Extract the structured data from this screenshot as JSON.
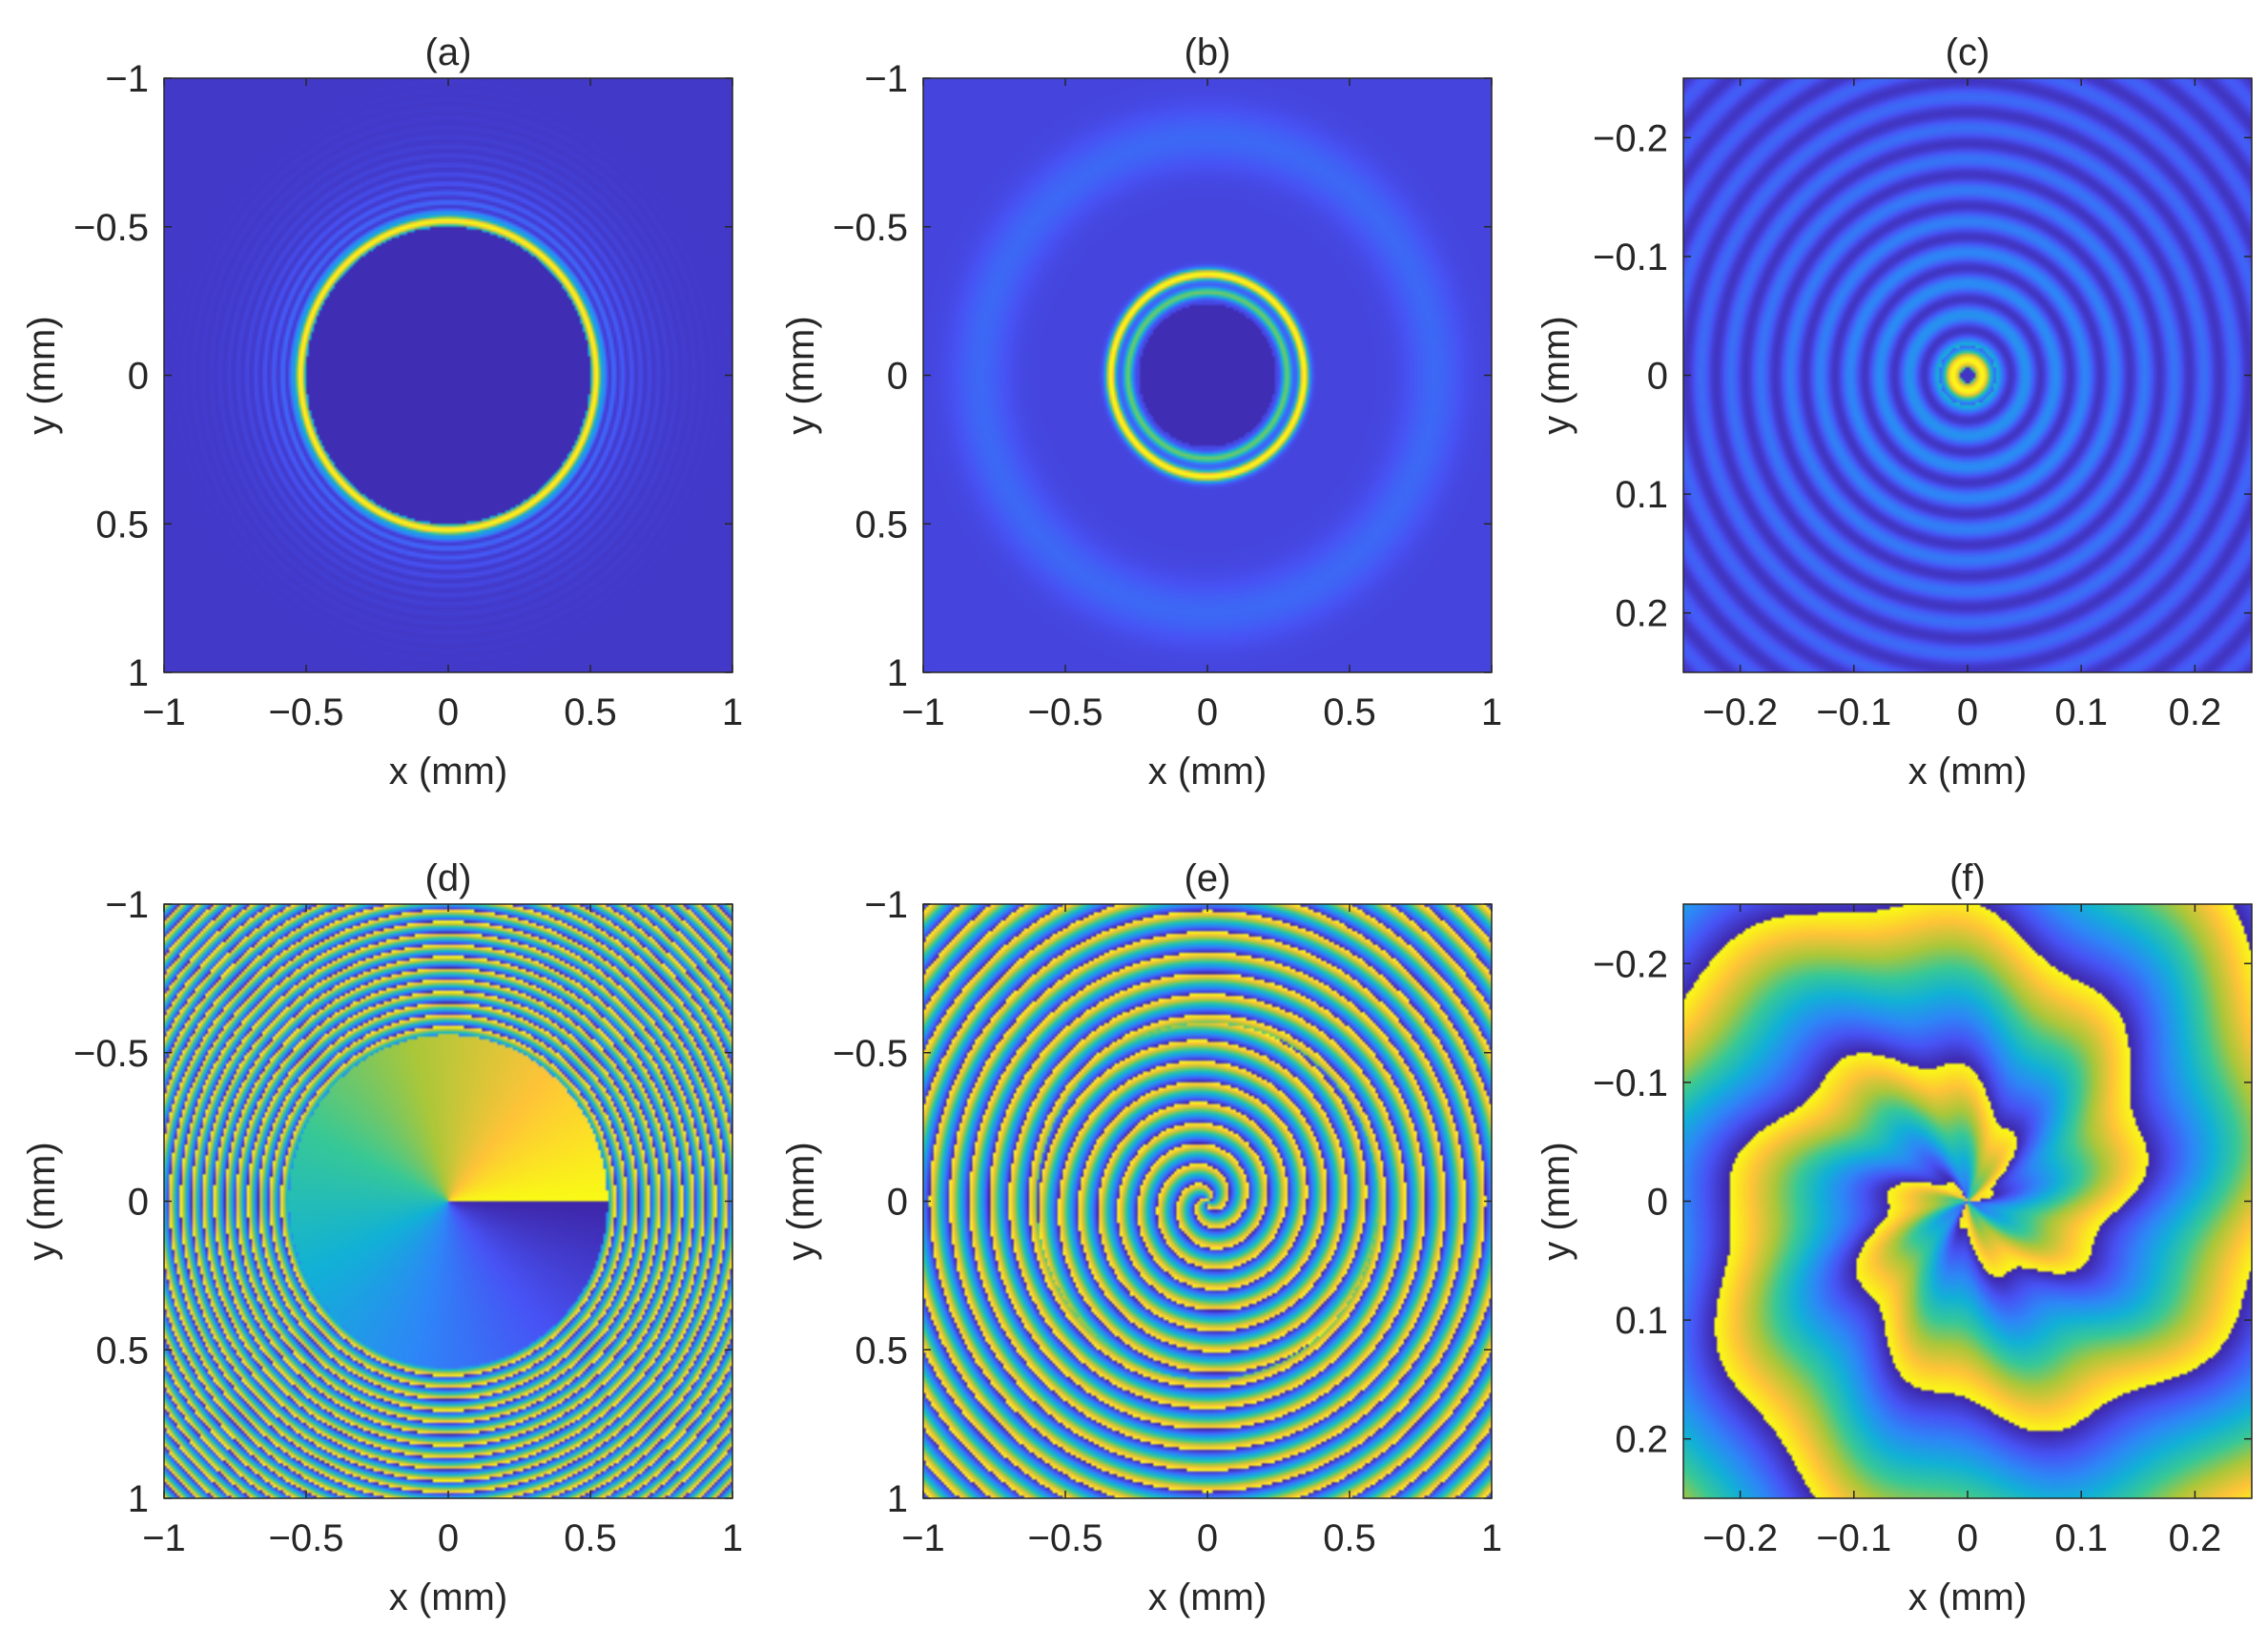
{
  "chart_data": [
    {
      "type": "heatmap",
      "title": "(a)",
      "quantity": "intensity",
      "xlabel": "x (mm)",
      "ylabel": "y (mm)",
      "xlim": [
        -1,
        1
      ],
      "ylim": [
        -1,
        1
      ],
      "y_reversed": true,
      "xticks": [
        -1,
        -0.5,
        0,
        0.5,
        1
      ],
      "yticks": [
        -1,
        -0.5,
        0,
        0.5,
        1
      ],
      "xtick_labels": [
        "−1",
        "−0.5",
        "0",
        "0.5",
        "1"
      ],
      "ytick_labels": [
        "−1",
        "−0.5",
        "0",
        "0.5",
        "1"
      ],
      "pattern": "bright thin ring of radius ~0.52 mm with faint outer fringes, dark interior",
      "colormap": "parula"
    },
    {
      "type": "heatmap",
      "title": "(b)",
      "quantity": "intensity",
      "xlabel": "x (mm)",
      "ylabel": "y (mm)",
      "xlim": [
        -1,
        1
      ],
      "ylim": [
        -1,
        1
      ],
      "y_reversed": true,
      "xticks": [
        -1,
        -0.5,
        0,
        0.5,
        1
      ],
      "yticks": [
        -1,
        -0.5,
        0,
        0.5,
        1
      ],
      "xtick_labels": [
        "−1",
        "−0.5",
        "0",
        "0.5",
        "1"
      ],
      "ytick_labels": [
        "−1",
        "−0.5",
        "0",
        "0.5",
        "1"
      ],
      "pattern": "double bright ring near radius ~0.32 mm with broad faint halo near 0.8 mm",
      "colormap": "parula"
    },
    {
      "type": "heatmap",
      "title": "(c)",
      "quantity": "intensity",
      "xlabel": "x (mm)",
      "ylabel": "y (mm)",
      "xlim": [
        -0.25,
        0.25
      ],
      "ylim": [
        -0.25,
        0.25
      ],
      "y_reversed": true,
      "xticks": [
        -0.2,
        -0.1,
        0,
        0.1,
        0.2
      ],
      "yticks": [
        -0.2,
        -0.1,
        0,
        0.1,
        0.2
      ],
      "xtick_labels": [
        "−0.2",
        "−0.1",
        "0",
        "0.1",
        "0.2"
      ],
      "ytick_labels": [
        "−0.2",
        "−0.1",
        "0",
        "0.1",
        "0.2"
      ],
      "pattern": "small bright central ring with concentric faint rings",
      "colormap": "parula"
    },
    {
      "type": "heatmap",
      "title": "(d)",
      "quantity": "phase",
      "xlabel": "x (mm)",
      "ylabel": "y (mm)",
      "xlim": [
        -1,
        1
      ],
      "ylim": [
        -1,
        1
      ],
      "y_reversed": true,
      "xticks": [
        -1,
        -0.5,
        0,
        0.5,
        1
      ],
      "yticks": [
        -1,
        -0.5,
        0,
        0.5,
        1
      ],
      "xtick_labels": [
        "−1",
        "−0.5",
        "0",
        "0.5",
        "1"
      ],
      "ytick_labels": [
        "−1",
        "−0.5",
        "0",
        "0.5",
        "1"
      ],
      "pattern": "azimuthal phase ramp inside radius ~0.57 mm, dense concentric phase rings outside",
      "colormap": "parula"
    },
    {
      "type": "heatmap",
      "title": "(e)",
      "quantity": "phase",
      "xlabel": "x (mm)",
      "ylabel": "y (mm)",
      "xlim": [
        -1,
        1
      ],
      "ylim": [
        -1,
        1
      ],
      "y_reversed": true,
      "xticks": [
        -1,
        -0.5,
        0,
        0.5,
        1
      ],
      "yticks": [
        -1,
        -0.5,
        0,
        0.5,
        1
      ],
      "xtick_labels": [
        "−1",
        "−0.5",
        "0",
        "0.5",
        "1"
      ],
      "ytick_labels": [
        "−1",
        "−0.5",
        "0",
        "0.5",
        "1"
      ],
      "pattern": "spiral phase inside radius ~0.6 mm, concentric phase rings outside",
      "colormap": "parula"
    },
    {
      "type": "heatmap",
      "title": "(f)",
      "quantity": "phase",
      "xlabel": "x (mm)",
      "ylabel": "y (mm)",
      "xlim": [
        -0.25,
        0.25
      ],
      "ylim": [
        -0.25,
        0.25
      ],
      "y_reversed": true,
      "xticks": [
        -0.2,
        -0.1,
        0,
        0.1,
        0.2
      ],
      "yticks": [
        -0.2,
        -0.1,
        0,
        0.1,
        0.2
      ],
      "xtick_labels": [
        "−0.2",
        "−0.1",
        "0",
        "0.1",
        "0.2"
      ],
      "ytick_labels": [
        "−0.2",
        "−0.1",
        "0",
        "0.1",
        "0.2"
      ],
      "pattern": "coarse spiral phase arms with wrapping discontinuities",
      "colormap": "parula"
    }
  ]
}
